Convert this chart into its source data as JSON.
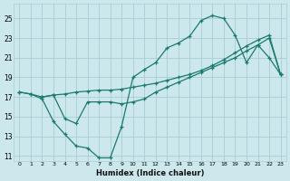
{
  "xlabel": "Humidex (Indice chaleur)",
  "bg_color": "#cde8ec",
  "grid_color": "#a8cdd4",
  "line_color": "#1a7a6e",
  "xlim": [
    -0.5,
    23.5
  ],
  "ylim": [
    10.5,
    26.5
  ],
  "xticks": [
    0,
    1,
    2,
    3,
    4,
    5,
    6,
    7,
    8,
    9,
    10,
    11,
    12,
    13,
    14,
    15,
    16,
    17,
    18,
    19,
    20,
    21,
    22,
    23
  ],
  "yticks": [
    11,
    13,
    15,
    17,
    19,
    21,
    23,
    25
  ],
  "line1_x": [
    0,
    1,
    2,
    3,
    4,
    5,
    6,
    7,
    8,
    9,
    10,
    11,
    12,
    13,
    14,
    15,
    16,
    17,
    18,
    19,
    20,
    21,
    22,
    23
  ],
  "line1_y": [
    17.5,
    17.3,
    17.0,
    17.2,
    17.3,
    17.5,
    17.6,
    17.7,
    17.7,
    17.8,
    18.0,
    18.2,
    18.4,
    18.7,
    19.0,
    19.3,
    19.7,
    20.2,
    20.8,
    21.5,
    22.2,
    22.8,
    23.3,
    19.3
  ],
  "line2_x": [
    0,
    1,
    2,
    3,
    4,
    5,
    6,
    7,
    8,
    9,
    10,
    11,
    12,
    13,
    14,
    15,
    16,
    17,
    18,
    19,
    20,
    21,
    22,
    23
  ],
  "line2_y": [
    17.5,
    17.3,
    16.8,
    14.5,
    13.2,
    12.0,
    11.8,
    10.8,
    10.8,
    14.0,
    19.0,
    19.8,
    20.5,
    22.0,
    22.5,
    23.2,
    24.8,
    25.3,
    25.0,
    23.3,
    20.5,
    22.3,
    21.0,
    19.3
  ],
  "line3_x": [
    2,
    3,
    4,
    5,
    6,
    7,
    8,
    9,
    10,
    11,
    12,
    13,
    14,
    15,
    16,
    17,
    18,
    19,
    20,
    21,
    22,
    23
  ],
  "line3_y": [
    17.0,
    17.2,
    14.8,
    14.3,
    16.5,
    16.5,
    16.5,
    16.3,
    16.5,
    16.8,
    17.5,
    18.0,
    18.5,
    19.0,
    19.5,
    20.0,
    20.5,
    21.0,
    21.7,
    22.3,
    23.0,
    19.3
  ]
}
